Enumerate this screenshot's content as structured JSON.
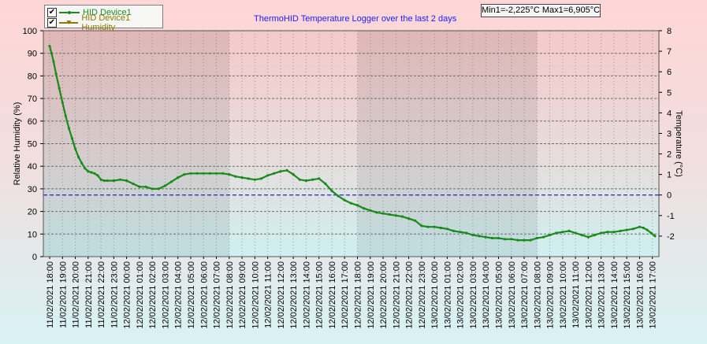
{
  "legend": {
    "items": [
      {
        "checked": true,
        "check_glyph": "✔",
        "label": "HID Device1",
        "color": "#1a8a1a"
      },
      {
        "checked": true,
        "check_glyph": "✔",
        "label": "HID Device1 Humidity",
        "color": "#8b7a00"
      }
    ]
  },
  "header": {
    "title": "ThermoHID Temperature Logger over the last 2 days",
    "minmax": "Min1=-2,225°C Max1=6,905°C"
  },
  "colors": {
    "temperature_line": "#1a8a1a",
    "zero_line": "#2222cc",
    "title": "#1a1aff",
    "grid": "#6c6c6c"
  },
  "chart_data": {
    "type": "line",
    "title": "ThermoHID Temperature Logger over the last 2 days",
    "ylabel_left": "Relative Humidity (%)",
    "ylabel_right": "Temperature (°C)",
    "ylim_left": [
      0,
      100
    ],
    "ylim_right": [
      -3,
      8
    ],
    "yticks_left": [
      "0",
      "10",
      "20",
      "30",
      "40",
      "50",
      "60",
      "70",
      "80",
      "90",
      "100"
    ],
    "yticks_right": [
      "-2",
      "-1",
      "0",
      "1",
      "2",
      "3",
      "4",
      "5",
      "6",
      "7",
      "8"
    ],
    "x_tick_labels": [
      "11/02/2021 18:00",
      "11/02/2021 19:00",
      "11/02/2021 20:00",
      "11/02/2021 21:00",
      "11/02/2021 22:00",
      "11/02/2021 23:00",
      "12/02/2021 00:00",
      "12/02/2021 01:00",
      "12/02/2021 02:00",
      "12/02/2021 03:00",
      "12/02/2021 04:00",
      "12/02/2021 05:00",
      "12/02/2021 06:00",
      "12/02/2021 07:00",
      "12/02/2021 08:00",
      "12/02/2021 09:00",
      "12/02/2021 10:00",
      "12/02/2021 11:00",
      "12/02/2021 12:00",
      "12/02/2021 13:00",
      "12/02/2021 14:00",
      "12/02/2021 15:00",
      "12/02/2021 16:00",
      "12/02/2021 17:00",
      "12/02/2021 18:00",
      "12/02/2021 19:00",
      "12/02/2021 20:00",
      "12/02/2021 21:00",
      "12/02/2021 22:00",
      "12/02/2021 23:00",
      "13/02/2021 00:00",
      "13/02/2021 01:00",
      "13/02/2021 02:00",
      "13/02/2021 03:00",
      "13/02/2021 04:00",
      "13/02/2021 05:00",
      "13/02/2021 06:00",
      "13/02/2021 07:00",
      "13/02/2021 08:00",
      "13/02/2021 09:00",
      "13/02/2021 10:00",
      "13/02/2021 11:00",
      "13/02/2021 12:00",
      "13/02/2021 13:00",
      "13/02/2021 14:00",
      "13/02/2021 15:00",
      "13/02/2021 16:00",
      "13/02/2021 17:00"
    ],
    "night_bands": [
      {
        "from": "11/02/2021 18:00",
        "to": "12/02/2021 08:00"
      },
      {
        "from": "12/02/2021 18:00",
        "to": "13/02/2021 08:00"
      }
    ],
    "reference_line": {
      "axis": "right",
      "value": 0
    },
    "grid": true,
    "legend_position": "top-left",
    "series": [
      {
        "name": "HID Device1",
        "axis": "right",
        "x_hours_from_start": [
          0,
          0.15,
          0.3,
          0.5,
          0.75,
          1.0,
          1.25,
          1.5,
          1.75,
          2.0,
          2.25,
          2.5,
          2.75,
          3.0,
          3.25,
          3.5,
          3.75,
          4.0,
          4.25,
          4.5,
          5.0,
          5.5,
          6.0,
          6.5,
          7.0,
          7.5,
          8.0,
          8.5,
          9.0,
          9.5,
          10.0,
          10.5,
          11.0,
          11.5,
          12.0,
          12.5,
          13.0,
          13.5,
          14.0,
          14.5,
          15.0,
          15.5,
          16.0,
          16.5,
          17.0,
          17.5,
          18.0,
          18.5,
          19.0,
          19.5,
          20.0,
          20.5,
          21.0,
          21.5,
          22.0,
          22.5,
          23.0,
          23.5,
          24.0,
          24.5,
          25.0,
          25.5,
          26.0,
          26.5,
          27.0,
          27.5,
          28.0,
          28.5,
          29.0,
          29.5,
          30.0,
          30.5,
          31.0,
          31.5,
          32.0,
          32.5,
          33.0,
          33.5,
          34.0,
          34.5,
          35.0,
          35.5,
          36.0,
          36.5,
          37.0,
          37.5,
          38.0,
          38.5,
          39.0,
          39.5,
          40.0,
          40.5,
          41.0,
          41.5,
          42.0,
          42.5,
          43.0,
          43.5,
          44.0,
          44.5,
          45.0,
          45.5,
          46.0,
          46.3,
          46.6,
          46.9,
          47.2
        ],
        "values": [
          7.25,
          6.9,
          6.5,
          5.9,
          5.2,
          4.5,
          3.85,
          3.25,
          2.75,
          2.25,
          1.85,
          1.55,
          1.3,
          1.15,
          1.1,
          1.05,
          0.95,
          0.75,
          0.7,
          0.7,
          0.7,
          0.75,
          0.7,
          0.55,
          0.4,
          0.4,
          0.3,
          0.3,
          0.45,
          0.65,
          0.85,
          1.0,
          1.05,
          1.05,
          1.05,
          1.05,
          1.05,
          1.05,
          1.0,
          0.9,
          0.85,
          0.8,
          0.75,
          0.8,
          0.95,
          1.05,
          1.15,
          1.2,
          1.0,
          0.75,
          0.7,
          0.75,
          0.8,
          0.55,
          0.2,
          -0.05,
          -0.25,
          -0.4,
          -0.5,
          -0.65,
          -0.75,
          -0.85,
          -0.9,
          -0.95,
          -1.0,
          -1.05,
          -1.15,
          -1.25,
          -1.5,
          -1.55,
          -1.55,
          -1.6,
          -1.65,
          -1.75,
          -1.8,
          -1.85,
          -1.95,
          -2.0,
          -2.05,
          -2.1,
          -2.1,
          -2.15,
          -2.15,
          -2.2,
          -2.2,
          -2.2,
          -2.1,
          -2.05,
          -1.95,
          -1.85,
          -1.8,
          -1.75,
          -1.85,
          -1.95,
          -2.05,
          -1.95,
          -1.85,
          -1.8,
          -1.8,
          -1.75,
          -1.7,
          -1.65,
          -1.55,
          -1.6,
          -1.7,
          -1.85,
          -2.0
        ]
      },
      {
        "name": "HID Device1 Humidity",
        "axis": "left",
        "x_hours_from_start": [],
        "values": []
      }
    ]
  }
}
